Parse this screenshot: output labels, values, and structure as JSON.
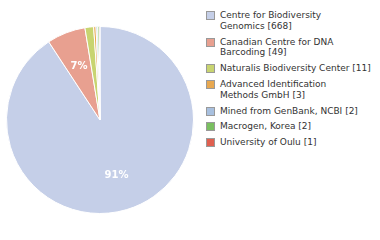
{
  "chart_data": {
    "type": "pie",
    "categories": [
      "Centre for Biodiversity\nGenomics [668]",
      "Canadian Centre for DNA\nBarcoding [49]",
      "Naturalis Biodiversity Center [11]",
      "Advanced Identification\nMethods GmbH [3]",
      "Mined from GenBank, NCBI [2]",
      "Macrogen, Korea [2]",
      "University of Oulu [1]"
    ],
    "values": [
      668,
      49,
      11,
      3,
      2,
      2,
      1
    ],
    "colors": [
      "#c5cfe8",
      "#e8a090",
      "#c8d470",
      "#e8a850",
      "#a8c0df",
      "#7abf60",
      "#e06050"
    ],
    "data_labels": true,
    "value_labels": [
      "91%",
      "7%",
      null,
      null,
      null,
      null,
      null
    ],
    "legend": "right"
  }
}
